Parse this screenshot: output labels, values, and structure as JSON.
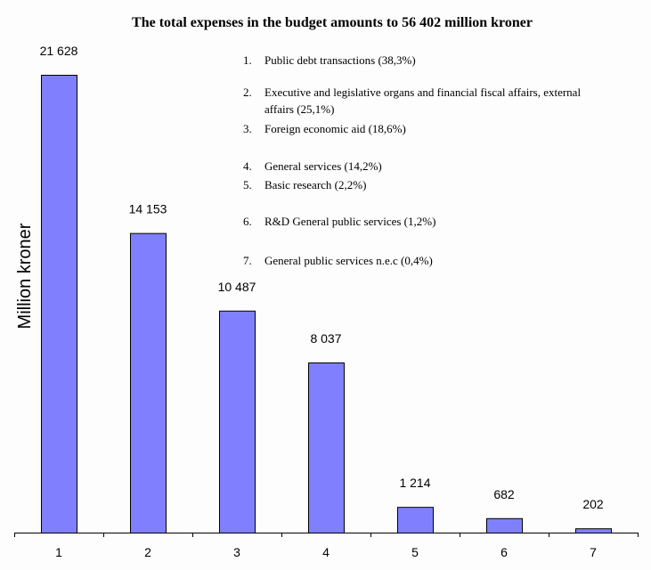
{
  "chart_data": {
    "type": "bar",
    "title": "The total expenses in the budget amounts to 56 402 million kroner",
    "xlabel": "",
    "ylabel": "Million kroner",
    "categories": [
      "1",
      "2",
      "3",
      "4",
      "5",
      "6",
      "7"
    ],
    "values": [
      21628,
      14153,
      10487,
      8037,
      1214,
      682,
      202
    ],
    "value_labels": [
      "21 628",
      "14 153",
      "10 487",
      "8 037",
      "1 214",
      "682",
      "202"
    ],
    "ylim": [
      0,
      21628
    ],
    "grid": false,
    "bar_color": "#8080ff",
    "legend_position": "top-right",
    "legend": [
      {
        "num": "1.",
        "lines": [
          "Public debt transactions (38,3%)"
        ]
      },
      {
        "num": "2.",
        "lines": [
          "Executive and legislative organs and financial fiscal affairs, external",
          "affairs (25,1%)"
        ]
      },
      {
        "num": "3.",
        "lines": [
          "Foreign economic aid (18,6%)"
        ]
      },
      {
        "num": "4.",
        "lines": [
          "General services (14,2%)"
        ]
      },
      {
        "num": "5.",
        "lines": [
          "Basic research (2,2%)"
        ]
      },
      {
        "num": "6.",
        "lines": [
          "R&D General public services (1,2%)"
        ]
      },
      {
        "num": "7.",
        "lines": [
          "General public services n.e.c (0,4%)"
        ]
      }
    ]
  }
}
